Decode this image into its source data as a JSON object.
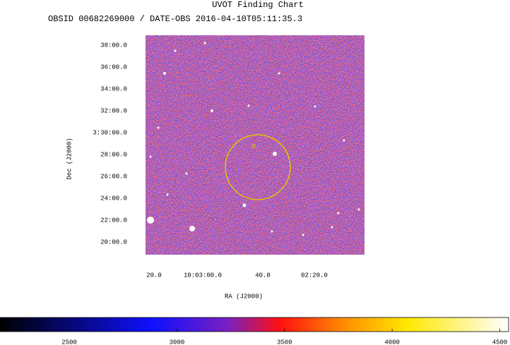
{
  "title": "UVOT Finding Chart",
  "subtitle": "OBSID 00682269000 / DATE-OBS 2016-04-10T05:11:35.3",
  "image": {
    "dec_ticks": [
      "38:00.0",
      "36:00.0",
      "34:00.0",
      "32:00.0",
      "3:30:00.0",
      "28:00.0",
      "26:00.0",
      "24:00.0",
      "22:00.0",
      "20:00.0"
    ],
    "ra_ticks": [
      "20.0",
      "10:03:00.0",
      "40.0",
      "02:20.0"
    ],
    "x_label": "RA (J2000)",
    "y_label": "Dec (J2000)"
  },
  "colorbar": {
    "range": [
      2178,
      4541
    ],
    "ticks": [
      2500,
      3000,
      3500,
      4000,
      4500
    ]
  }
}
